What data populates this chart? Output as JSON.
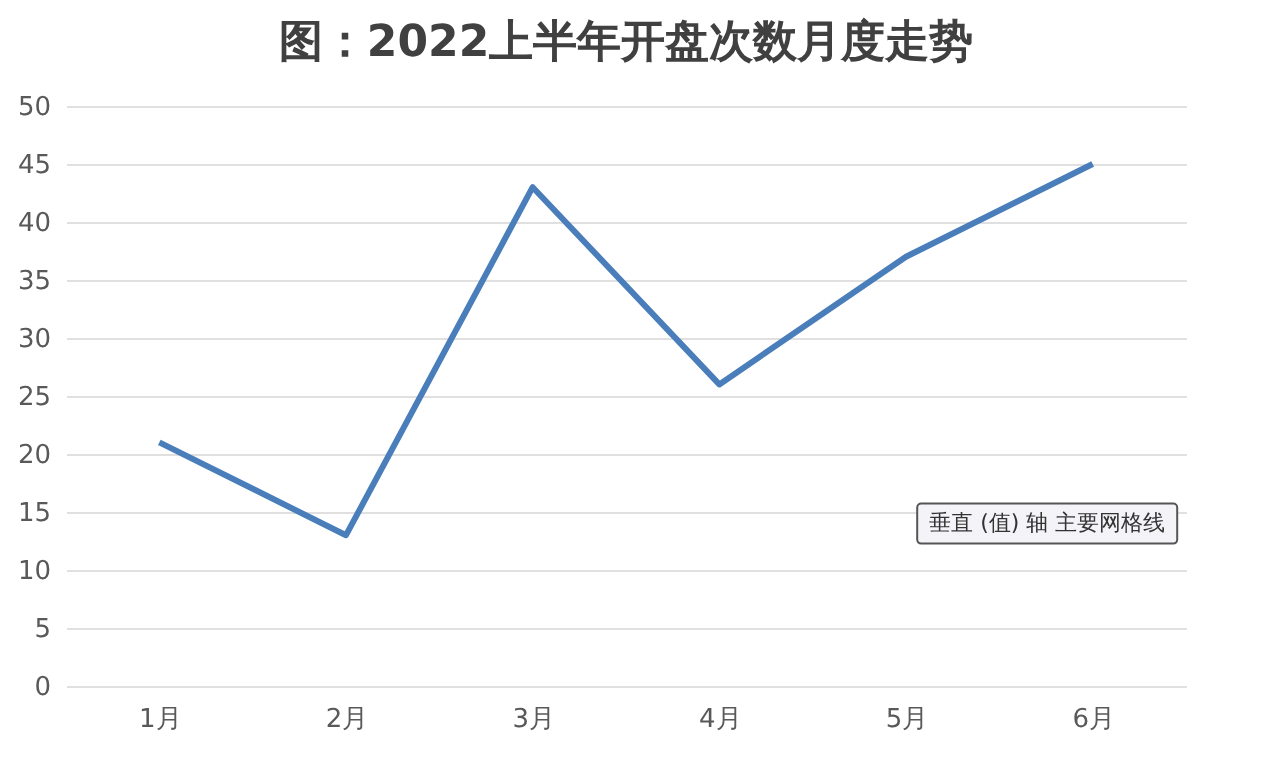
{
  "chart_data": {
    "type": "line",
    "title": "图：2022上半年开盘次数月度走势",
    "categories": [
      "1月",
      "2月",
      "3月",
      "4月",
      "5月",
      "6月"
    ],
    "series": [
      {
        "color": "#4a7ebb",
        "values": [
          21,
          13,
          43,
          26,
          37,
          45
        ]
      }
    ],
    "ylim": [
      0,
      50
    ],
    "yticks": [
      0,
      5,
      10,
      15,
      20,
      25,
      30,
      35,
      40,
      45,
      50
    ],
    "grid": "y",
    "marker": "none",
    "line_style": "solid",
    "annotations": [
      "垂直 (值) 轴 主要网格线"
    ]
  }
}
